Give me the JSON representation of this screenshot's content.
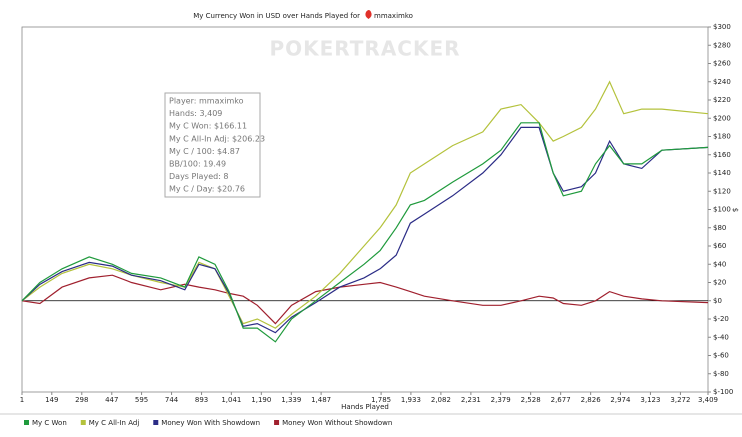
{
  "chart_data": {
    "type": "line",
    "title": "My Currency Won in USD over Hands Played for",
    "user": "mmaximko",
    "watermark": "POKERTRACKER",
    "xlabel": "Hands Played",
    "ylabel": "$",
    "x": [
      1,
      90,
      200,
      335,
      450,
      545,
      690,
      810,
      880,
      960,
      1030,
      1100,
      1170,
      1260,
      1340,
      1460,
      1580,
      1700,
      1780,
      1860,
      1930,
      2000,
      2140,
      2290,
      2380,
      2480,
      2570,
      2640,
      2690,
      2780,
      2850,
      2920,
      2990,
      3080,
      3180,
      3409
    ],
    "series": [
      {
        "name": "My C Won",
        "color": "#1f9a3c",
        "values": [
          0,
          20,
          35,
          48,
          40,
          30,
          25,
          15,
          48,
          40,
          10,
          -30,
          -30,
          -45,
          -20,
          0,
          20,
          40,
          55,
          80,
          105,
          110,
          130,
          150,
          165,
          195,
          195,
          140,
          115,
          120,
          150,
          170,
          150,
          150,
          165,
          168
        ]
      },
      {
        "name": "My C All-In Adj",
        "color": "#b4c23c",
        "values": [
          0,
          15,
          30,
          40,
          35,
          28,
          20,
          15,
          42,
          35,
          5,
          -25,
          -20,
          -30,
          -15,
          5,
          30,
          60,
          80,
          105,
          140,
          150,
          170,
          185,
          210,
          215,
          195,
          175,
          180,
          190,
          210,
          240,
          205,
          210,
          210,
          205
        ]
      },
      {
        "name": "Money Won With Showdown",
        "color": "#2b2c86",
        "values": [
          0,
          18,
          32,
          42,
          38,
          28,
          22,
          12,
          40,
          35,
          8,
          -28,
          -25,
          -35,
          -18,
          -2,
          15,
          25,
          35,
          50,
          85,
          95,
          115,
          140,
          160,
          190,
          190,
          140,
          120,
          125,
          140,
          175,
          150,
          145,
          165,
          168
        ]
      },
      {
        "name": "Money Won Without Showdown",
        "color": "#a0202e",
        "values": [
          0,
          -3,
          15,
          25,
          28,
          20,
          12,
          18,
          15,
          12,
          8,
          5,
          -5,
          -25,
          -5,
          10,
          15,
          18,
          20,
          15,
          10,
          5,
          0,
          -5,
          -5,
          0,
          5,
          3,
          -3,
          -5,
          0,
          10,
          5,
          2,
          0,
          -2
        ]
      }
    ],
    "xlim": [
      1,
      3409
    ],
    "xticks": [
      1,
      149,
      298,
      447,
      595,
      744,
      893,
      {
        "value": 1041,
        "label": "1,041"
      },
      {
        "value": 1190,
        "label": "1,190"
      },
      {
        "value": 1339,
        "label": "1,339"
      },
      {
        "value": 1487,
        "label": "1,487"
      },
      {
        "value": 1785,
        "label": "1,785"
      },
      {
        "value": 1933,
        "label": "1,933"
      },
      {
        "value": 2082,
        "label": "2,082"
      },
      {
        "value": 2231,
        "label": "2,231"
      },
      {
        "value": 2379,
        "label": "2,379"
      },
      {
        "value": 2528,
        "label": "2,528"
      },
      {
        "value": 2677,
        "label": "2,677"
      },
      {
        "value": 2826,
        "label": "2,826"
      },
      {
        "value": 2974,
        "label": "2,974"
      },
      {
        "value": 3123,
        "label": "3,123"
      },
      {
        "value": 3272,
        "label": "3,272"
      },
      {
        "value": 3409,
        "label": "3,409"
      }
    ],
    "ylim": [
      -100,
      300
    ],
    "yticks": [
      {
        "value": -100,
        "label": "$-100"
      },
      {
        "value": -80,
        "label": "$-80"
      },
      {
        "value": -60,
        "label": "$-60"
      },
      {
        "value": -40,
        "label": "$-40"
      },
      {
        "value": -20,
        "label": "$-20"
      },
      {
        "value": 0,
        "label": "$0"
      },
      {
        "value": 20,
        "label": "$20"
      },
      {
        "value": 40,
        "label": "$40"
      },
      {
        "value": 60,
        "label": "$60"
      },
      {
        "value": 80,
        "label": "$80"
      },
      {
        "value": 100,
        "label": "$100"
      },
      {
        "value": 120,
        "label": "$120"
      },
      {
        "value": 140,
        "label": "$140"
      },
      {
        "value": 160,
        "label": "$160"
      },
      {
        "value": 180,
        "label": "$180"
      },
      {
        "value": 200,
        "label": "$200"
      },
      {
        "value": 220,
        "label": "$220"
      },
      {
        "value": 240,
        "label": "$240"
      },
      {
        "value": 260,
        "label": "$260"
      },
      {
        "value": 280,
        "label": "$280"
      },
      {
        "value": 300,
        "label": "$300"
      }
    ]
  },
  "tooltip": {
    "lines": [
      "Player: mmaximko",
      "Hands: 3,409",
      "My C Won: $166.11",
      "My C All-In Adj: $206.23",
      "My C / 100: $4.87",
      "BB/100: 19.49",
      "Days Played: 8",
      "My C / Day: $20.76"
    ]
  }
}
